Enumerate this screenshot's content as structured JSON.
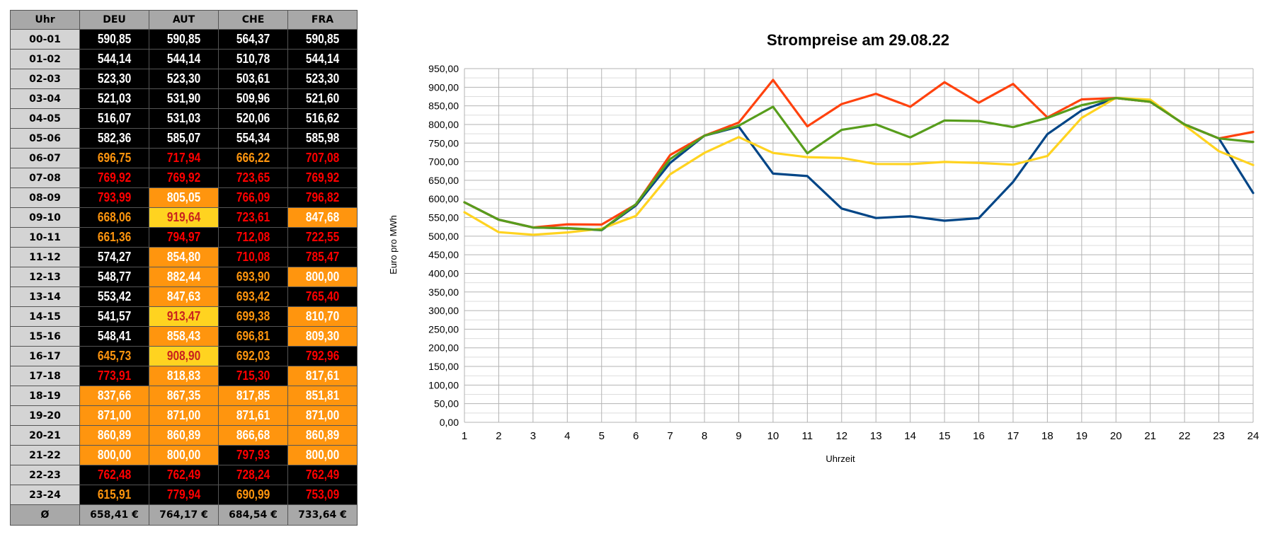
{
  "table": {
    "headers": [
      "Uhr",
      "DEU",
      "AUT",
      "CHE",
      "FRA"
    ],
    "rows": [
      {
        "hour": "00-01",
        "values": [
          "590,85",
          "590,85",
          "564,37",
          "590,85"
        ]
      },
      {
        "hour": "01-02",
        "values": [
          "544,14",
          "544,14",
          "510,78",
          "544,14"
        ]
      },
      {
        "hour": "02-03",
        "values": [
          "523,30",
          "523,30",
          "503,61",
          "523,30"
        ]
      },
      {
        "hour": "03-04",
        "values": [
          "521,03",
          "531,90",
          "509,96",
          "521,60"
        ]
      },
      {
        "hour": "04-05",
        "values": [
          "516,07",
          "531,03",
          "520,06",
          "516,62"
        ]
      },
      {
        "hour": "05-06",
        "values": [
          "582,36",
          "585,07",
          "554,34",
          "585,98"
        ]
      },
      {
        "hour": "06-07",
        "values": [
          "696,75",
          "717,94",
          "666,22",
          "707,08"
        ]
      },
      {
        "hour": "07-08",
        "values": [
          "769,92",
          "769,92",
          "723,65",
          "769,92"
        ]
      },
      {
        "hour": "08-09",
        "values": [
          "793,99",
          "805,05",
          "766,09",
          "796,82"
        ]
      },
      {
        "hour": "09-10",
        "values": [
          "668,06",
          "919,64",
          "723,61",
          "847,68"
        ]
      },
      {
        "hour": "10-11",
        "values": [
          "661,36",
          "794,97",
          "712,08",
          "722,55"
        ]
      },
      {
        "hour": "11-12",
        "values": [
          "574,27",
          "854,80",
          "710,08",
          "785,47"
        ]
      },
      {
        "hour": "12-13",
        "values": [
          "548,77",
          "882,44",
          "693,90",
          "800,00"
        ]
      },
      {
        "hour": "13-14",
        "values": [
          "553,42",
          "847,63",
          "693,42",
          "765,40"
        ]
      },
      {
        "hour": "14-15",
        "values": [
          "541,57",
          "913,47",
          "699,38",
          "810,70"
        ]
      },
      {
        "hour": "15-16",
        "values": [
          "548,41",
          "858,43",
          "696,81",
          "809,30"
        ]
      },
      {
        "hour": "16-17",
        "values": [
          "645,73",
          "908,90",
          "692,03",
          "792,96"
        ]
      },
      {
        "hour": "17-18",
        "values": [
          "773,91",
          "818,83",
          "715,30",
          "817,61"
        ]
      },
      {
        "hour": "18-19",
        "values": [
          "837,66",
          "867,35",
          "817,85",
          "851,81"
        ]
      },
      {
        "hour": "19-20",
        "values": [
          "871,00",
          "871,00",
          "871,61",
          "871,00"
        ]
      },
      {
        "hour": "20-21",
        "values": [
          "860,89",
          "860,89",
          "866,68",
          "860,89"
        ]
      },
      {
        "hour": "21-22",
        "values": [
          "800,00",
          "800,00",
          "797,93",
          "800,00"
        ]
      },
      {
        "hour": "22-23",
        "values": [
          "762,48",
          "762,49",
          "728,24",
          "762,49"
        ]
      },
      {
        "hour": "23-24",
        "values": [
          "615,91",
          "779,94",
          "690,99",
          "753,09"
        ]
      }
    ],
    "avg_row": {
      "label": "Ø",
      "values": [
        "658,41 €",
        "764,17 €",
        "684,54 €",
        "733,64 €"
      ]
    }
  },
  "colors": {
    "cell_black": "#000000",
    "cell_orange": "#ff950e",
    "cell_yellow": "#ffd320",
    "text_white": "#ffffff",
    "text_orange": "#ff950e",
    "text_red": "#ff0000",
    "text_darkred": "#c9211e",
    "series_DEU": "#004586",
    "series_AUT": "#ff420e",
    "series_CHE": "#ffd320",
    "series_FRA": "#579d1c"
  },
  "chart_data": {
    "type": "line",
    "title": "Strompreise am 29.08.22",
    "xlabel": "Uhrzeit",
    "ylabel": "Euro pro MWh",
    "x": [
      1,
      2,
      3,
      4,
      5,
      6,
      7,
      8,
      9,
      10,
      11,
      12,
      13,
      14,
      15,
      16,
      17,
      18,
      19,
      20,
      21,
      22,
      23,
      24
    ],
    "ylim": [
      0,
      950
    ],
    "ytick_step": 50,
    "grid": true,
    "legend": "none",
    "series": [
      {
        "color": "#004586",
        "values": [
          590.85,
          544.14,
          523.3,
          521.03,
          516.07,
          582.36,
          696.75,
          769.92,
          793.99,
          668.06,
          661.36,
          574.27,
          548.77,
          553.42,
          541.57,
          548.41,
          645.73,
          773.91,
          837.66,
          871.0,
          860.89,
          800.0,
          762.48,
          615.91
        ]
      },
      {
        "color": "#ff420e",
        "values": [
          590.85,
          544.14,
          523.3,
          531.9,
          531.03,
          585.07,
          717.94,
          769.92,
          805.05,
          919.64,
          794.97,
          854.8,
          882.44,
          847.63,
          913.47,
          858.43,
          908.9,
          818.83,
          867.35,
          871.0,
          860.89,
          800.0,
          762.49,
          779.94
        ]
      },
      {
        "color": "#ffd320",
        "values": [
          564.37,
          510.78,
          503.61,
          509.96,
          520.06,
          554.34,
          666.22,
          723.65,
          766.09,
          723.61,
          712.08,
          710.08,
          693.9,
          693.42,
          699.38,
          696.81,
          692.03,
          715.3,
          817.85,
          871.61,
          866.68,
          797.93,
          728.24,
          690.99
        ]
      },
      {
        "color": "#579d1c",
        "values": [
          590.85,
          544.14,
          523.3,
          521.6,
          516.62,
          585.98,
          707.08,
          769.92,
          796.82,
          847.68,
          722.55,
          785.47,
          800.0,
          765.4,
          810.7,
          809.3,
          792.96,
          817.61,
          851.81,
          871.0,
          860.89,
          800.0,
          762.49,
          753.09
        ]
      }
    ]
  }
}
